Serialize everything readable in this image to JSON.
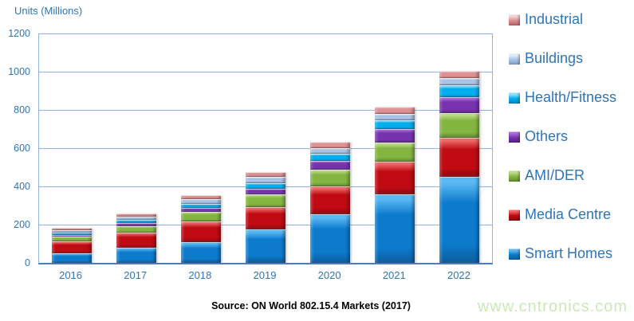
{
  "chart": {
    "title": "Units (Millions)",
    "source": "Source: ON World 802.15.4 Markets (2017)",
    "watermark": "www.cntronics.com"
  },
  "colors": {
    "label_blue": "#2E75B6",
    "gridline": "#95B3D7",
    "axis_line": "#4A7EBB",
    "watermark_green": "#CBE8B8"
  },
  "chart_data": {
    "type": "bar",
    "stacked": true,
    "title": "Units (Millions)",
    "xlabel": "",
    "ylabel": "Units (Millions)",
    "ylim": [
      0,
      1200
    ],
    "ytick_step": 200,
    "grid": true,
    "legend_position": "right",
    "legend_order_top_to_bottom": [
      "Industrial",
      "Buildings",
      "Health/Fitness",
      "Others",
      "AMI/DER",
      "Media Centre",
      "Smart Homes"
    ],
    "categories": [
      "2016",
      "2017",
      "2018",
      "2019",
      "2020",
      "2021",
      "2022"
    ],
    "series": [
      {
        "name": "Smart Homes",
        "color": "#0D7BCC",
        "light": "#5AB9F2",
        "dark": "#0A5E9E",
        "values": [
          52,
          78,
          110,
          175,
          255,
          360,
          450
        ]
      },
      {
        "name": "Media Centre",
        "color": "#C00B13",
        "light": "#EE6A6A",
        "dark": "#8E0810",
        "values": [
          60,
          79,
          105,
          118,
          145,
          170,
          203
        ]
      },
      {
        "name": "AMI/DER",
        "color": "#84B541",
        "light": "#C2DE8D",
        "dark": "#5F8A2C",
        "values": [
          24,
          35,
          50,
          66,
          87,
          100,
          130
        ]
      },
      {
        "name": "Others",
        "color": "#7733AE",
        "light": "#AD6BE0",
        "dark": "#54207E",
        "values": [
          11,
          17,
          22,
          28,
          46,
          70,
          85
        ]
      },
      {
        "name": "Health/Fitness",
        "color": "#00AEEF",
        "light": "#8FE3FB",
        "dark": "#0884B8",
        "values": [
          13,
          18,
          20,
          30,
          37,
          45,
          62
        ]
      },
      {
        "name": "Buildings",
        "color": "#A9C3E8",
        "light": "#E6EFFA",
        "dark": "#7E9DC8",
        "values": [
          10,
          13,
          25,
          32,
          29,
          33,
          35
        ]
      },
      {
        "name": "Industrial",
        "color": "#DE9093",
        "light": "#F5D5D6",
        "dark": "#B85F63",
        "values": [
          13,
          18,
          23,
          28,
          33,
          40,
          40
        ]
      }
    ]
  }
}
